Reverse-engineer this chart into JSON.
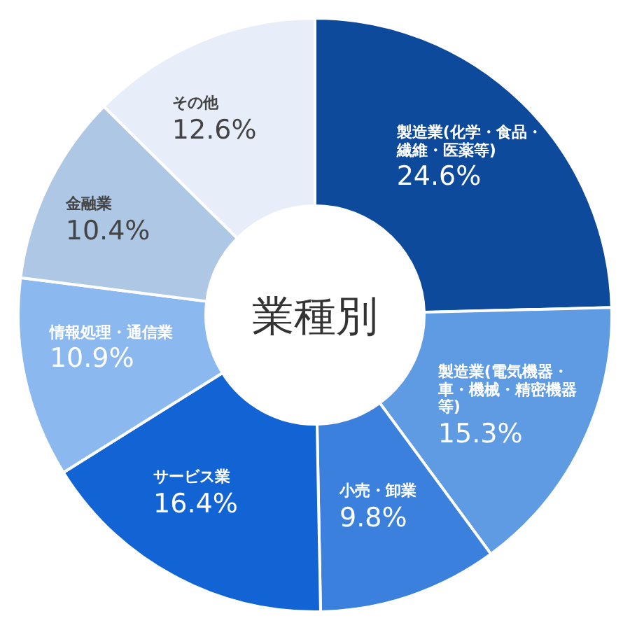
{
  "chart_data": {
    "type": "donut",
    "title": "業種別",
    "categories": [
      "製造業(化学・食品・繊維・医薬等)",
      "製造業(電気機器・車・機械・精密機器等)",
      "小売・卸業",
      "サービス業",
      "情報処理・通信業",
      "金融業",
      "その他"
    ],
    "values": [
      24.6,
      15.3,
      9.8,
      16.4,
      10.9,
      10.4,
      12.6
    ],
    "value_labels": [
      "24.6%",
      "15.3%",
      "9.8%",
      "16.4%",
      "10.9%",
      "10.4%",
      "12.6%"
    ],
    "colors": [
      "#0e4a9c",
      "#5e9be3",
      "#3a80dc",
      "#1263d4",
      "#8bb8ef",
      "#aec7e5",
      "#e7eefa"
    ]
  }
}
